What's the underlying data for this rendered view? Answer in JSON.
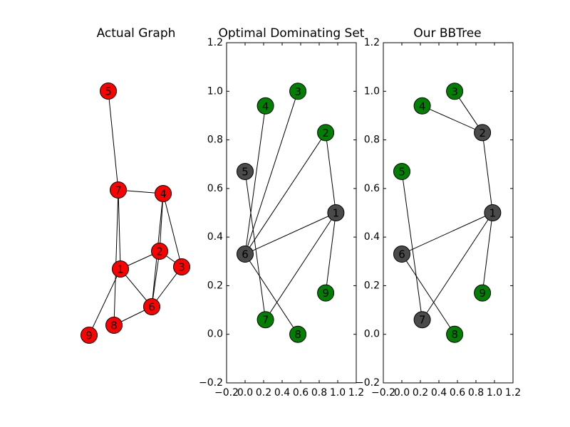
{
  "chart_data": [
    {
      "type": "network",
      "title": "Actual Graph",
      "nodes": [
        {
          "label": "1",
          "color": "#ff0000"
        },
        {
          "label": "2",
          "color": "#ff0000"
        },
        {
          "label": "3",
          "color": "#ff0000"
        },
        {
          "label": "4",
          "color": "#ff0000"
        },
        {
          "label": "5",
          "color": "#ff0000"
        },
        {
          "label": "6",
          "color": "#ff0000"
        },
        {
          "label": "7",
          "color": "#ff0000"
        },
        {
          "label": "8",
          "color": "#ff0000"
        },
        {
          "label": "9",
          "color": "#ff0000"
        }
      ],
      "edges": [
        [
          4,
          6
        ],
        [
          6,
          3
        ],
        [
          6,
          0
        ],
        [
          6,
          7
        ],
        [
          3,
          1
        ],
        [
          3,
          5
        ],
        [
          3,
          2
        ],
        [
          1,
          2
        ],
        [
          1,
          0
        ],
        [
          1,
          5
        ],
        [
          0,
          5
        ],
        [
          0,
          8
        ],
        [
          5,
          7
        ],
        [
          5,
          2
        ]
      ]
    },
    {
      "type": "network",
      "title": "Optimal Dominating Set",
      "xlim": [
        -0.2,
        1.2
      ],
      "ylim": [
        -0.2,
        1.2
      ],
      "xticks": [
        {
          "value": -0.2,
          "label": "−0.2"
        },
        {
          "value": 0,
          "label": "0.0"
        },
        0.2,
        0.4,
        0.6,
        0.8,
        {
          "value": 1,
          "label": "1.0"
        },
        1.2
      ],
      "yticks": [
        {
          "value": -0.2,
          "label": "−0.2"
        },
        {
          "value": 0,
          "label": "0.0"
        },
        0.2,
        0.4,
        0.6,
        0.8,
        {
          "value": 1,
          "label": "1.0"
        },
        1.2
      ],
      "nodes": [
        {
          "label": "1",
          "x": 0.98,
          "y": 0.5,
          "color": "#4a4a4a"
        },
        {
          "label": "2",
          "x": 0.87,
          "y": 0.83,
          "color": "#008000"
        },
        {
          "label": "3",
          "x": 0.57,
          "y": 1.0,
          "color": "#008000"
        },
        {
          "label": "4",
          "x": 0.22,
          "y": 0.94,
          "color": "#008000"
        },
        {
          "label": "5",
          "x": 0.0,
          "y": 0.67,
          "color": "#4a4a4a"
        },
        {
          "label": "6",
          "x": 0.0,
          "y": 0.33,
          "color": "#4a4a4a"
        },
        {
          "label": "7",
          "x": 0.22,
          "y": 0.06,
          "color": "#008000"
        },
        {
          "label": "8",
          "x": 0.57,
          "y": 0.0,
          "color": "#008000"
        },
        {
          "label": "9",
          "x": 0.87,
          "y": 0.17,
          "color": "#008000"
        }
      ],
      "edges": [
        [
          5,
          3
        ],
        [
          5,
          2
        ],
        [
          5,
          1
        ],
        [
          5,
          0
        ],
        [
          0,
          1
        ],
        [
          0,
          8
        ],
        [
          0,
          6
        ],
        [
          4,
          6
        ],
        [
          5,
          7
        ]
      ]
    },
    {
      "type": "network",
      "title": "Our BBTree",
      "xlim": [
        -0.2,
        1.2
      ],
      "ylim": [
        -0.2,
        1.2
      ],
      "xticks": [
        {
          "value": -0.2,
          "label": "−0.2"
        },
        {
          "value": 0,
          "label": "0.0"
        },
        0.2,
        0.4,
        0.6,
        0.8,
        {
          "value": 1,
          "label": "1.0"
        },
        1.2
      ],
      "yticks": [
        {
          "value": -0.2,
          "label": "−0.2"
        },
        {
          "value": 0,
          "label": "0.0"
        },
        0.2,
        0.4,
        0.6,
        0.8,
        {
          "value": 1,
          "label": "1.0"
        },
        1.2
      ],
      "nodes": [
        {
          "label": "1",
          "x": 0.98,
          "y": 0.5,
          "color": "#4a4a4a"
        },
        {
          "label": "2",
          "x": 0.87,
          "y": 0.83,
          "color": "#4a4a4a"
        },
        {
          "label": "3",
          "x": 0.57,
          "y": 1.0,
          "color": "#008000"
        },
        {
          "label": "4",
          "x": 0.22,
          "y": 0.94,
          "color": "#008000"
        },
        {
          "label": "5",
          "x": 0.0,
          "y": 0.67,
          "color": "#008000"
        },
        {
          "label": "6",
          "x": 0.0,
          "y": 0.33,
          "color": "#4a4a4a"
        },
        {
          "label": "7",
          "x": 0.22,
          "y": 0.06,
          "color": "#4a4a4a"
        },
        {
          "label": "8",
          "x": 0.57,
          "y": 0.0,
          "color": "#008000"
        },
        {
          "label": "9",
          "x": 0.87,
          "y": 0.17,
          "color": "#008000"
        }
      ],
      "edges": [
        [
          2,
          1
        ],
        [
          3,
          1
        ],
        [
          1,
          0
        ],
        [
          0,
          8
        ],
        [
          0,
          6
        ],
        [
          0,
          5
        ],
        [
          4,
          6
        ],
        [
          5,
          7
        ]
      ]
    }
  ]
}
